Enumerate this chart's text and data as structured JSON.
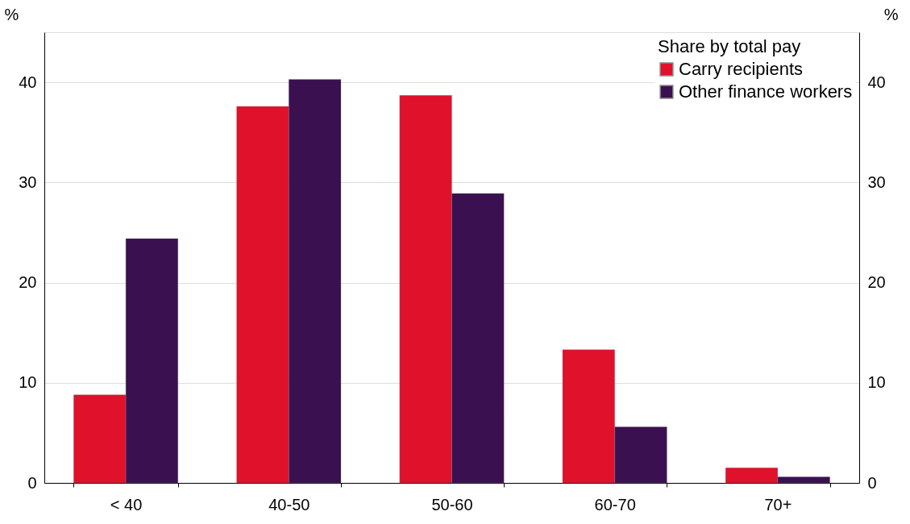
{
  "chart_data": {
    "type": "bar",
    "categories": [
      "< 40",
      "40-50",
      "50-60",
      "60-70",
      "70+"
    ],
    "series": [
      {
        "name": "Carry recipients",
        "color": "#e0112b",
        "values": [
          8.8,
          37.6,
          38.7,
          13.3,
          1.5
        ]
      },
      {
        "name": "Other finance workers",
        "color": "#3b1050",
        "values": [
          24.4,
          40.3,
          28.9,
          5.6,
          0.6
        ]
      }
    ],
    "ylabel": "%",
    "y2label": "%",
    "legend_title": "Share by total pay",
    "legend": "top right",
    "ylim": [
      0,
      45
    ],
    "yticks": [
      0,
      10,
      20,
      30,
      40
    ],
    "y2lim": [
      0,
      45
    ],
    "y2ticks": [
      0,
      10,
      20,
      30,
      40
    ],
    "grid": "y"
  }
}
